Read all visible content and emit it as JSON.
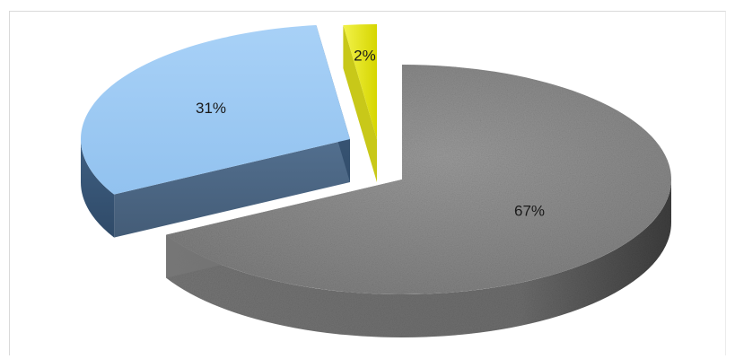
{
  "chart_data": {
    "type": "pie",
    "variant": "3d-exploded",
    "slices": [
      {
        "label": "67%",
        "value": 67,
        "color": "#8a8a8a"
      },
      {
        "label": "31%",
        "value": 31,
        "color": "#9fcaf3"
      },
      {
        "label": "2%",
        "value": 2,
        "color": "#eaea10"
      }
    ],
    "legend": "none",
    "grid": false
  }
}
